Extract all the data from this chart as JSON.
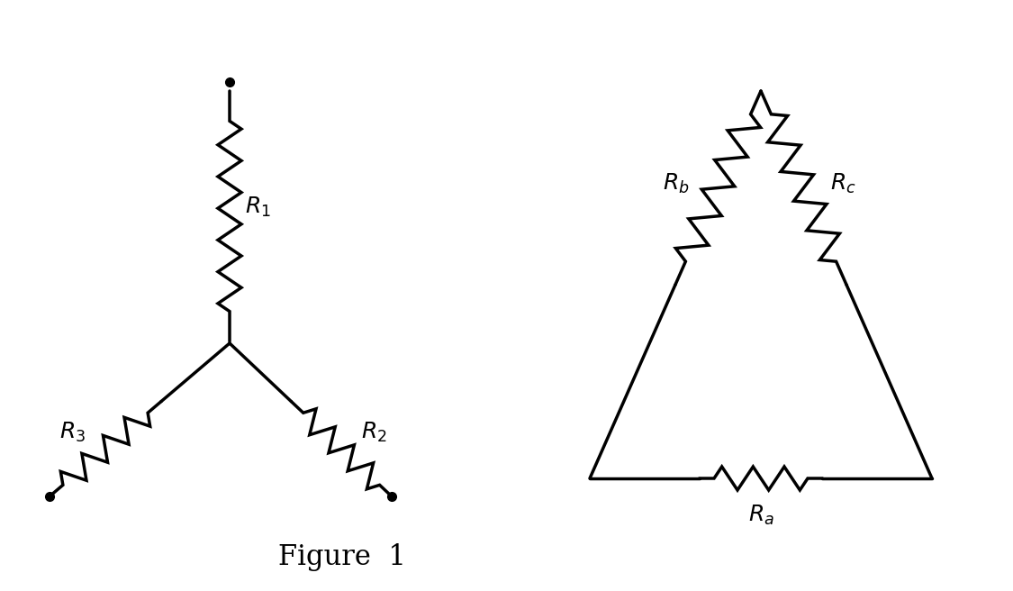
{
  "bg_color": "#ffffff",
  "line_color": "#000000",
  "line_width": 2.5,
  "dot_size": 7,
  "figure_label": "Figure  1",
  "figure_label_fontsize": 22,
  "R1_label": "$R_1$",
  "R2_label": "$R_2$",
  "R3_label": "$R_3$",
  "Ra_label": "$R_a$",
  "Rb_label": "$R_b$",
  "Rc_label": "$R_c$",
  "label_fontsize": 18,
  "label_fontsize_sub": 16
}
